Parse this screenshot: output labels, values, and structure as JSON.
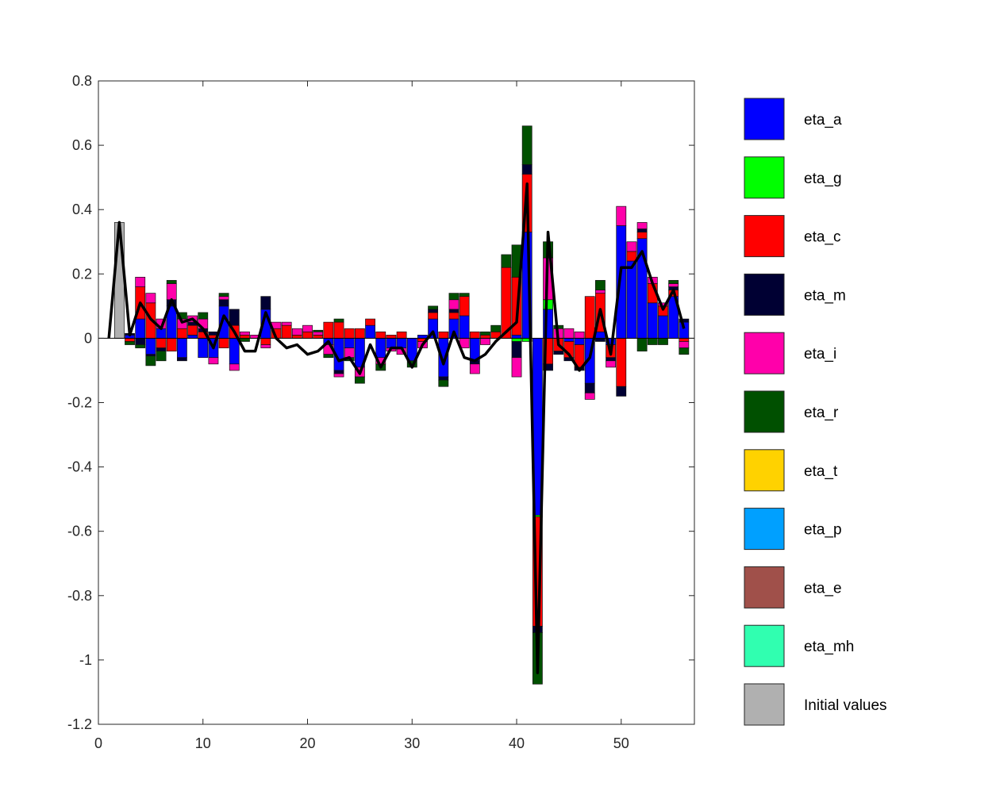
{
  "chart_data": {
    "type": "bar",
    "stacked": true,
    "title": "",
    "xlabel": "",
    "ylabel": "",
    "xlim": [
      0,
      57
    ],
    "ylim": [
      -1.2,
      0.8
    ],
    "x_ticks": [
      0,
      10,
      20,
      30,
      40,
      50
    ],
    "y_ticks": [
      -1.2,
      -1,
      -0.8,
      -0.6,
      -0.4,
      -0.2,
      0,
      0.2,
      0.4,
      0.6,
      0.8
    ],
    "x_tick_labels": [
      "0",
      "10",
      "20",
      "30",
      "40",
      "50"
    ],
    "y_tick_labels": [
      "-1.2",
      "-1",
      "-0.8",
      "-0.6",
      "-0.4",
      "-0.2",
      "0",
      "0.2",
      "0.4",
      "0.6",
      "0.8"
    ],
    "grid": false,
    "legend_position": "outside right",
    "legend": [
      {
        "name": "eta_a",
        "color": "#0000ff"
      },
      {
        "name": "eta_g",
        "color": "#00ff00"
      },
      {
        "name": "eta_c",
        "color": "#ff0000"
      },
      {
        "name": "eta_m",
        "color": "#000033"
      },
      {
        "name": "eta_i",
        "color": "#ff00aa"
      },
      {
        "name": "eta_r",
        "color": "#005000"
      },
      {
        "name": "eta_t",
        "color": "#ffd200"
      },
      {
        "name": "eta_p",
        "color": "#00a0ff"
      },
      {
        "name": "eta_e",
        "color": "#a0504a"
      },
      {
        "name": "eta_mh",
        "color": "#30ffb0"
      },
      {
        "name": "Initial values",
        "color": "#b0b0b0"
      }
    ],
    "x": [
      1,
      2,
      3,
      4,
      5,
      6,
      7,
      8,
      9,
      10,
      11,
      12,
      13,
      14,
      15,
      16,
      17,
      18,
      19,
      20,
      21,
      22,
      23,
      24,
      25,
      26,
      27,
      28,
      29,
      30,
      31,
      32,
      33,
      34,
      35,
      36,
      37,
      38,
      39,
      40,
      41,
      42,
      43,
      44,
      45,
      46,
      47,
      48,
      49,
      50,
      51,
      52,
      53,
      54,
      55,
      56
    ],
    "series": [
      {
        "name": "eta_a",
        "values": [
          0,
          0,
          0.01,
          0.06,
          -0.05,
          0.03,
          0.1,
          -0.06,
          0.01,
          -0.06,
          -0.06,
          0.1,
          -0.08,
          0,
          0,
          0.09,
          0,
          0,
          0,
          0,
          0,
          -0.02,
          -0.1,
          -0.03,
          -0.09,
          0.04,
          -0.06,
          -0.03,
          -0.03,
          -0.07,
          0.01,
          0.06,
          -0.12,
          0.06,
          0.07,
          -0.07,
          0,
          0,
          0,
          0.01,
          0.33,
          -0.55,
          0.09,
          0,
          -0.01,
          -0.02,
          -0.14,
          0.02,
          -0.02,
          0.35,
          0.24,
          0.31,
          0.11,
          0.07,
          0.13,
          0.05
        ]
      },
      {
        "name": "eta_g",
        "values": [
          0,
          0,
          0,
          0,
          0,
          0,
          0,
          0,
          0,
          0,
          0,
          0,
          0,
          0,
          0,
          0,
          0,
          0,
          0,
          0,
          0,
          0,
          0,
          0,
          0,
          0,
          0,
          0,
          0,
          0,
          0,
          0,
          0,
          0,
          0,
          0,
          0,
          0,
          0,
          -0.01,
          -0.01,
          -0.005,
          0.03,
          0,
          0,
          0,
          0,
          0,
          0,
          0,
          0,
          0,
          0,
          0,
          0,
          0
        ]
      },
      {
        "name": "eta_c",
        "values": [
          0,
          0,
          -0.01,
          0.1,
          0.11,
          -0.03,
          -0.04,
          0.03,
          0.03,
          0.02,
          0.01,
          -0.03,
          0.04,
          0.01,
          0,
          -0.02,
          0.03,
          0.04,
          0.01,
          0.02,
          0.01,
          0.05,
          0.05,
          0.03,
          0.03,
          0.02,
          0.02,
          0.01,
          0.02,
          0,
          -0.01,
          0.02,
          0.02,
          0.02,
          0.06,
          0.02,
          0.01,
          0.02,
          0.22,
          0.18,
          0.18,
          -0.34,
          -0.08,
          -0.04,
          -0.05,
          -0.07,
          0.13,
          0.12,
          -0.04,
          -0.15,
          0.03,
          0.02,
          0.06,
          0.03,
          0.02,
          -0.01
        ]
      },
      {
        "name": "eta_m",
        "values": [
          0,
          0,
          0.005,
          -0.02,
          -0.005,
          -0.01,
          0.02,
          -0.01,
          0.01,
          0.01,
          0.01,
          0.02,
          0.05,
          0,
          0,
          0.04,
          0,
          0,
          0,
          0,
          0,
          0,
          -0.01,
          0,
          0,
          0,
          0,
          0,
          0,
          0,
          0,
          0.01,
          -0.01,
          0.01,
          0,
          -0.01,
          0,
          0,
          0,
          -0.05,
          0.03,
          -0.02,
          -0.02,
          -0.01,
          -0.01,
          -0.01,
          -0.03,
          -0.01,
          -0.01,
          -0.03,
          0,
          0.01,
          0,
          0,
          0.01,
          0.01
        ]
      },
      {
        "name": "eta_i",
        "values": [
          0,
          0,
          0,
          0.03,
          0.03,
          0.03,
          0.05,
          0.03,
          0.02,
          0.03,
          -0.02,
          0.01,
          -0.02,
          0.01,
          0.01,
          -0.01,
          0.02,
          0.01,
          0.02,
          0.02,
          0.01,
          -0.03,
          -0.01,
          -0.03,
          -0.03,
          0,
          -0.02,
          -0.01,
          -0.02,
          0,
          -0.02,
          0,
          0,
          0.03,
          -0.03,
          -0.03,
          -0.02,
          0,
          0,
          -0.06,
          0,
          0,
          0.13,
          0.03,
          0.03,
          0.02,
          -0.02,
          0.01,
          -0.02,
          0.06,
          0.03,
          0.02,
          0.02,
          0.01,
          0.01,
          -0.02
        ]
      },
      {
        "name": "eta_r",
        "values": [
          0,
          0,
          -0.01,
          -0.01,
          -0.03,
          -0.03,
          0.01,
          0.02,
          0,
          0.02,
          0,
          0.01,
          0,
          -0.01,
          0,
          0,
          0,
          0,
          0,
          0,
          0.005,
          -0.01,
          0.01,
          -0.01,
          -0.02,
          0,
          -0.02,
          0,
          0,
          -0.02,
          0,
          0.01,
          -0.02,
          0.02,
          0.01,
          0,
          0.01,
          0.02,
          0.04,
          0.1,
          0.12,
          -0.16,
          0.05,
          0.01,
          0,
          0,
          0,
          0.03,
          0,
          0,
          0,
          -0.04,
          -0.02,
          -0.02,
          0.01,
          -0.02
        ]
      },
      {
        "name": "Initial values",
        "values": [
          0,
          0.36,
          0,
          0,
          0,
          0,
          0,
          0,
          0,
          0,
          0,
          0,
          0,
          0,
          0,
          0,
          0,
          0,
          0,
          0,
          0,
          0,
          0,
          0,
          0,
          0,
          0,
          0,
          0,
          0,
          0,
          0,
          0,
          0,
          0,
          0,
          0,
          0,
          0,
          0,
          0,
          0,
          0,
          0,
          0,
          0,
          0,
          0,
          0,
          0,
          0,
          0,
          0,
          0,
          0,
          0
        ]
      }
    ],
    "total_line": {
      "name": "total",
      "color": "#000000",
      "values": [
        0,
        0.36,
        0.01,
        0.11,
        0.06,
        0.03,
        0.12,
        0.05,
        0.06,
        0.03,
        -0.03,
        0.07,
        0.02,
        -0.04,
        -0.04,
        0.08,
        0,
        -0.03,
        -0.02,
        -0.05,
        -0.04,
        -0.01,
        -0.07,
        -0.06,
        -0.11,
        -0.02,
        -0.09,
        -0.03,
        -0.03,
        -0.09,
        -0.02,
        0.02,
        -0.08,
        0.02,
        -0.06,
        -0.07,
        -0.05,
        -0.01,
        0.02,
        0.05,
        0.48,
        -1.04,
        0.33,
        -0.02,
        -0.05,
        -0.1,
        -0.06,
        0.09,
        -0.05,
        0.22,
        0.22,
        0.27,
        0.17,
        0.09,
        0.15,
        0.03
      ]
    }
  }
}
